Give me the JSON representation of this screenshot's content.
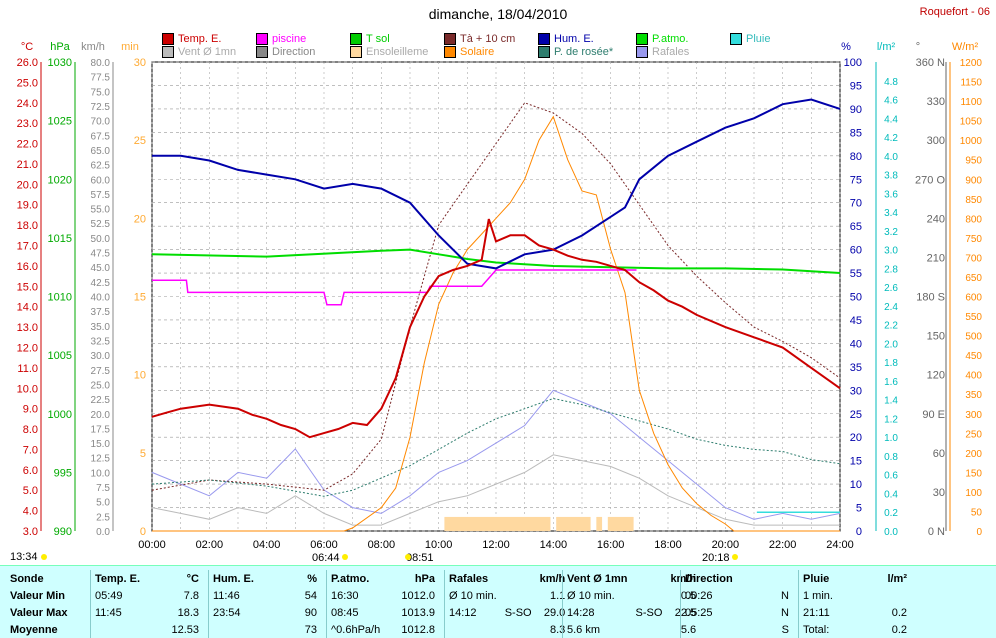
{
  "title": "dimanche, 18/04/2010",
  "station": "Roquefort - 06",
  "legend_row1": [
    {
      "label": "Temp. E.",
      "color": "#cc0000"
    },
    {
      "label": "piscine",
      "color": "#ff00ff"
    },
    {
      "label": "T sol",
      "color": "#00cc00"
    },
    {
      "label": "Tà + 10 cm",
      "color": "#7a2a2a"
    },
    {
      "label": "Hum. E.",
      "color": "#0000aa"
    },
    {
      "label": "P.atmo.",
      "color": "#00dd00"
    },
    {
      "label": "Pluie",
      "color": "#33dddd"
    }
  ],
  "legend_row2": [
    {
      "label": "Vent Ø 1mn",
      "color": "#bbbbbb",
      "dim": true
    },
    {
      "label": "Direction",
      "color": "#888888",
      "dim": false
    },
    {
      "label": "Ensoleilleme",
      "color": "#ffd9a0",
      "dim": true
    },
    {
      "label": "Solaire",
      "color": "#ff8800",
      "dim": false
    },
    {
      "label": "P. de rosée*",
      "color": "#2e7d6e",
      "dim": false
    },
    {
      "label": "Rafales",
      "color": "#9999ee",
      "dim": true
    }
  ],
  "axis_headers": {
    "temp": "°C",
    "press": "hPa",
    "wind": "km/h",
    "min": "min",
    "hum": "%",
    "rain": "l/m²",
    "dir": "°",
    "solar": "W/m²"
  },
  "marks": {
    "sunrise": "06:44",
    "solarnoon": "08:51",
    "sunset": "20:18",
    "left": "13:34"
  },
  "chart_data": {
    "type": "line",
    "x_axis": {
      "label": "",
      "ticks": [
        "00:00",
        "02:00",
        "04:00",
        "06:00",
        "08:00",
        "10:00",
        "12:00",
        "14:00",
        "16:00",
        "18:00",
        "20:00",
        "22:00",
        "24:00"
      ],
      "range": [
        0,
        24
      ]
    },
    "y_axes": {
      "temp_c": {
        "range": [
          3,
          26
        ],
        "step": 0.5,
        "color": "#cc0000"
      },
      "pressure_hpa": {
        "range": [
          990,
          1030
        ],
        "ticks": [
          990,
          995,
          1000,
          1005,
          1010,
          1015,
          1020,
          1025,
          1030
        ],
        "color": "#00aa00"
      },
      "wind_kmh": {
        "range": [
          0,
          80
        ],
        "step": 2.5,
        "color": "#888888"
      },
      "sun_min": {
        "range": [
          0,
          30
        ],
        "ticks": [
          0,
          5,
          10,
          15,
          20,
          25,
          30
        ],
        "color": "#ffaa33"
      },
      "humidity_pct": {
        "range": [
          0,
          100
        ],
        "step": 5,
        "color": "#0000aa"
      },
      "rain_lm2": {
        "range": [
          0,
          5
        ],
        "step": 0.2,
        "color": "#00bbbb"
      },
      "direction_deg": {
        "range": [
          0,
          360
        ],
        "ticks": [
          "0 N",
          "30",
          "60",
          "90 E",
          "120",
          "150",
          "180 S",
          "210",
          "240",
          "270 O",
          "300",
          "330",
          "360 N"
        ],
        "color": "#666666"
      },
      "solar_wm2": {
        "range": [
          0,
          1200
        ],
        "step": 50,
        "color": "#ff8800"
      }
    },
    "series": [
      {
        "name": "Temp. E.",
        "axis": "temp_c",
        "color": "#cc0000",
        "x": [
          0,
          0.5,
          1,
          2,
          3,
          3.5,
          4,
          4.5,
          5,
          5.5,
          6,
          6.5,
          7,
          7.5,
          8,
          8.5,
          9,
          9.5,
          10,
          10.5,
          11,
          11.5,
          11.75,
          12,
          12.5,
          13,
          13.5,
          14,
          14.5,
          15,
          15.5,
          16,
          16.5,
          17,
          17.5,
          18,
          18.5,
          19,
          20,
          21,
          22,
          23,
          24
        ],
        "y": [
          8.6,
          8.8,
          9.0,
          9.2,
          9.0,
          8.7,
          8.5,
          8.2,
          8.0,
          7.6,
          7.8,
          8.0,
          8.3,
          8.2,
          9.0,
          10.5,
          13.0,
          14.5,
          15.5,
          15.8,
          16.0,
          16.3,
          18.3,
          17.2,
          17.5,
          17.5,
          17.0,
          16.8,
          16.5,
          16.3,
          16.2,
          16.0,
          15.8,
          15.2,
          14.8,
          14.3,
          14.0,
          13.6,
          13.0,
          12.5,
          12.0,
          11.0,
          10.0
        ]
      },
      {
        "name": "piscine",
        "axis": "temp_c",
        "color": "#ff00ff",
        "x": [
          0,
          1.2,
          1.25,
          6,
          6.1,
          6.6,
          6.7,
          9.6,
          9.7,
          11.5,
          12,
          16.9
        ],
        "y": [
          15.3,
          15.3,
          14.7,
          14.7,
          14.1,
          14.1,
          14.7,
          14.7,
          15.0,
          15.0,
          15.8,
          15.8
        ]
      },
      {
        "name": "T sol",
        "axis": "pressure_hpa",
        "color": "#00dd00",
        "x": [
          0,
          4,
          8,
          9,
          10,
          11,
          12,
          14,
          16,
          18,
          20,
          22,
          24
        ],
        "y": [
          1013.6,
          1013.4,
          1013.9,
          1014.0,
          1013.6,
          1013.2,
          1012.9,
          1012.6,
          1012.5,
          1012.4,
          1012.4,
          1012.3,
          1012.0
        ]
      },
      {
        "name": "Hum. E.",
        "axis": "humidity_pct",
        "color": "#0000aa",
        "x": [
          0,
          1,
          2,
          3,
          4,
          5,
          6,
          7,
          8,
          9,
          10,
          11,
          12,
          13,
          14,
          15,
          16,
          16.5,
          17,
          18,
          19,
          20,
          21,
          22,
          23,
          24
        ],
        "y": [
          80,
          80,
          79,
          77,
          76,
          75,
          73,
          74,
          73,
          70,
          63,
          57,
          56,
          59,
          60,
          63,
          67,
          69,
          75,
          80,
          83,
          86,
          88,
          91,
          92,
          90
        ]
      },
      {
        "name": "Tà + 10 cm",
        "axis": "temp_c",
        "color": "#7a2a2a",
        "x": [
          0,
          2,
          4,
          6,
          7,
          8,
          9,
          10,
          11,
          12,
          13,
          14,
          15,
          16,
          17,
          18,
          19,
          20,
          21,
          22,
          23,
          24
        ],
        "y": [
          5.0,
          5.5,
          5.3,
          5.0,
          5.8,
          7.5,
          13.0,
          18.0,
          20.0,
          22.0,
          24.0,
          23.5,
          22.5,
          21.0,
          19.0,
          17.0,
          15.5,
          14.2,
          13.0,
          12.3,
          11.5,
          10.5
        ]
      },
      {
        "name": "P. de rosée*",
        "axis": "temp_c",
        "color": "#2e7d6e",
        "x": [
          0,
          2,
          4,
          6,
          7,
          8,
          9,
          10,
          11,
          12,
          13,
          14,
          15,
          16,
          17,
          18,
          19,
          20,
          21,
          22,
          23,
          24
        ],
        "y": [
          5.3,
          5.5,
          5.2,
          4.7,
          5.0,
          5.6,
          6.2,
          7.0,
          7.8,
          8.5,
          9.0,
          9.5,
          9.2,
          8.8,
          8.4,
          8.0,
          7.5,
          7.2,
          7.0,
          6.9,
          6.5,
          6.3
        ]
      },
      {
        "name": "Solaire",
        "axis": "solar_wm2",
        "color": "#ff8800",
        "x": [
          0,
          6.7,
          7,
          8,
          8.5,
          9,
          9.5,
          10,
          10.5,
          11,
          11.5,
          12,
          12.5,
          13,
          13.5,
          14,
          14.5,
          15,
          15.5,
          16,
          16.5,
          17,
          17.5,
          18,
          18.5,
          19,
          19.5,
          20,
          20.3,
          24
        ],
        "y": [
          0,
          0,
          8,
          60,
          110,
          240,
          430,
          580,
          660,
          720,
          760,
          800,
          840,
          900,
          1000,
          1060,
          950,
          870,
          860,
          720,
          610,
          360,
          250,
          170,
          110,
          70,
          40,
          18,
          0,
          0
        ]
      },
      {
        "name": "Rafales",
        "axis": "wind_kmh",
        "color": "#9999ee",
        "x": [
          0,
          1,
          2,
          3,
          4,
          5,
          6,
          7,
          8,
          9,
          10,
          11,
          12,
          13,
          14,
          15,
          16,
          17,
          18,
          19,
          20,
          21,
          22,
          23,
          24
        ],
        "y": [
          10,
          8,
          6,
          10,
          9,
          14,
          7,
          4,
          3,
          6,
          10,
          12,
          15,
          18,
          24,
          22,
          20,
          16,
          12,
          8,
          4,
          2,
          3,
          2,
          3
        ]
      },
      {
        "name": "Vent Ø 1mn",
        "axis": "wind_kmh",
        "color": "#bbbbbb",
        "x": [
          0,
          1,
          2,
          3,
          4,
          5,
          6,
          7,
          8,
          9,
          10,
          11,
          12,
          13,
          14,
          15,
          16,
          17,
          18,
          19,
          20,
          21,
          22,
          23,
          24
        ],
        "y": [
          4,
          3,
          2,
          4,
          3,
          6,
          3,
          1,
          1,
          3,
          5,
          6,
          8,
          10,
          13,
          12,
          11,
          9,
          6,
          4,
          2,
          1,
          1,
          1,
          1
        ]
      }
    ],
    "sunshine_blocks": [
      [
        10.2,
        13.9
      ],
      [
        14.1,
        15.3
      ],
      [
        15.5,
        15.7
      ],
      [
        15.9,
        16.8
      ]
    ],
    "rain_series": {
      "name": "Pluie",
      "axis": "rain_lm2",
      "x": [
        21.1,
        24
      ],
      "y": [
        0.2,
        0.2
      ]
    }
  },
  "summary": {
    "sonde": {
      "title": "Sonde",
      "rows": [
        "Valeur Min",
        "Valeur Max",
        "Moyenne"
      ]
    },
    "temp": {
      "title": "Temp. E.",
      "unit": "°C",
      "rows": [
        [
          "05:49",
          "7.8"
        ],
        [
          "11:45",
          "18.3"
        ],
        [
          "",
          "12.53"
        ]
      ]
    },
    "hum": {
      "title": "Hum. E.",
      "unit": "%",
      "rows": [
        [
          "11:46",
          "54"
        ],
        [
          "23:54",
          "90"
        ],
        [
          "",
          "73"
        ]
      ]
    },
    "press": {
      "title": "P.atmo.",
      "unit": "hPa",
      "rows": [
        [
          "16:30",
          "1012.0"
        ],
        [
          "08:45",
          "1013.9"
        ],
        [
          "^0.6hPa/h",
          "1012.8"
        ]
      ]
    },
    "rafales": {
      "title": "Rafales",
      "unit": "km/h",
      "rows": [
        [
          "Ø 10 min.",
          "",
          "1.1"
        ],
        [
          "14:12",
          "S-SO",
          "29.0"
        ],
        [
          "",
          "",
          "8.3"
        ]
      ]
    },
    "vent": {
      "title": "Vent Ø 1mn",
      "unit": "km/h",
      "rows": [
        [
          "Ø 10 min.",
          "",
          "0.5"
        ],
        [
          "14:28",
          "S-SO",
          "22.5"
        ],
        [
          "5.6 km",
          "",
          "5.6"
        ]
      ]
    },
    "dir": {
      "title": "Direction",
      "rows": [
        [
          "00:26",
          "N"
        ],
        [
          "05:25",
          "N"
        ],
        [
          "",
          "S"
        ]
      ]
    },
    "pluie": {
      "title": "Pluie",
      "unit": "l/m²",
      "rows": [
        [
          "1 min.",
          ""
        ],
        [
          "21:11",
          "0.2"
        ],
        [
          "Total:",
          "0.2"
        ]
      ]
    }
  }
}
